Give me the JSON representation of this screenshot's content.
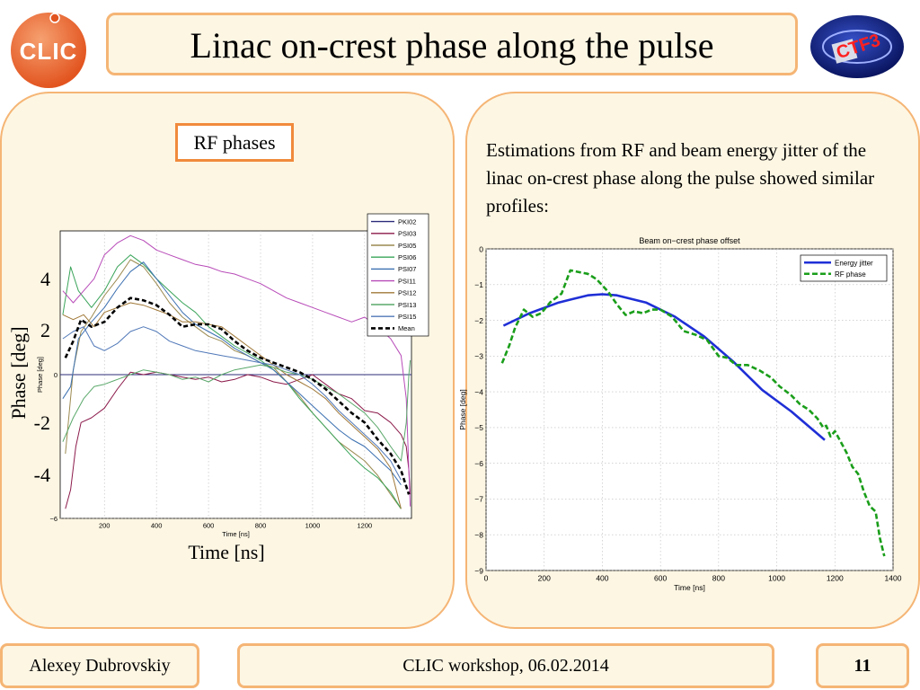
{
  "slide": {
    "title": "Linac on-crest phase along the pulse",
    "logo_left_text": "CLIC",
    "logo_right_text": "CTF3",
    "rf_box_label": "RF phases",
    "description": "Estimations from RF and beam energy jitter of the linac on-crest phase along the pulse showed similar profiles:",
    "left_big_labels": {
      "ylabel": "Phase [deg]",
      "xlabel": "Time [ns]",
      "yticks": [
        "4",
        "2",
        "-2",
        "-4"
      ]
    },
    "footer": {
      "author": "Alexey Dubrovskiy",
      "event": "CLIC workshop, 06.02.2014",
      "page": "11"
    }
  },
  "colors": {
    "accent_border": "#f5b575",
    "panel_bg": "#fdf6e3",
    "rf_box_border": "#f08a3c",
    "energy_jitter": "#1f2fd6",
    "rf_phase": "#1a9e1a"
  },
  "chart_data": [
    {
      "type": "line",
      "title": "",
      "xlabel": "Time [ns]",
      "ylabel": "Phase [deg]",
      "xlim": [
        30,
        1380
      ],
      "ylim": [
        -6,
        6
      ],
      "xticks": [
        "200",
        "400",
        "600",
        "800",
        "1000",
        "1200"
      ],
      "yticks": [
        "−6",
        "0"
      ],
      "grid": true,
      "legend_position": "top-right",
      "series": [
        {
          "name": "PKI02",
          "color": "#2b2b7a",
          "dash": false,
          "x": [
            30,
            1380
          ],
          "y": [
            0,
            0
          ]
        },
        {
          "name": "PSI03",
          "color": "#8b1a4a",
          "dash": false,
          "x": [
            50,
            70,
            90,
            110,
            150,
            200,
            250,
            300,
            350,
            400,
            450,
            500,
            550,
            600,
            650,
            700,
            750,
            800,
            850,
            900,
            950,
            1000,
            1050,
            1100,
            1150,
            1200,
            1250,
            1300,
            1340,
            1360,
            1370,
            1375
          ],
          "y": [
            -5.6,
            -4.8,
            -3.0,
            -2.0,
            -1.8,
            -1.4,
            -0.6,
            0.1,
            0.0,
            0.1,
            0.0,
            -0.1,
            -0.2,
            -0.1,
            -0.3,
            -0.2,
            0.0,
            -0.1,
            -0.3,
            -0.4,
            -0.2,
            0.0,
            -0.4,
            -0.8,
            -1.0,
            -1.5,
            -1.6,
            -2.0,
            -2.5,
            -3.0,
            -4.0,
            -5.0
          ]
        },
        {
          "name": "PSI05",
          "color": "#9c8a50",
          "dash": false,
          "x": [
            50,
            80,
            110,
            150,
            200,
            250,
            300,
            350,
            400,
            450,
            500,
            550,
            600,
            650,
            700,
            750,
            800,
            850,
            900,
            950,
            1000,
            1050,
            1100,
            1150,
            1200,
            1250,
            1300,
            1340
          ],
          "y": [
            -3.3,
            0.2,
            1.8,
            2.4,
            3.3,
            4.0,
            4.8,
            4.5,
            3.8,
            3.0,
            2.4,
            2.0,
            1.6,
            1.4,
            1.0,
            0.8,
            0.5,
            0.3,
            -0.3,
            -0.9,
            -1.6,
            -2.2,
            -2.8,
            -3.2,
            -3.6,
            -4.2,
            -5.0,
            -5.6
          ]
        },
        {
          "name": "PSI06",
          "color": "#3aa45a",
          "dash": false,
          "x": [
            40,
            70,
            100,
            150,
            200,
            250,
            300,
            350,
            400,
            450,
            500,
            550,
            600,
            650,
            700,
            750,
            800,
            850,
            900,
            950,
            1000,
            1050,
            1100,
            1150,
            1200,
            1250,
            1300,
            1340
          ],
          "y": [
            2.5,
            4.5,
            3.5,
            2.8,
            3.5,
            4.5,
            5.0,
            4.6,
            4.0,
            3.5,
            3.0,
            2.6,
            2.0,
            1.6,
            1.2,
            0.9,
            0.6,
            0.2,
            -0.3,
            -1.0,
            -1.6,
            -2.2,
            -2.8,
            -3.4,
            -3.9,
            -4.3,
            -4.9,
            -5.6
          ]
        },
        {
          "name": "PSI07",
          "color": "#3a6fb0",
          "dash": false,
          "x": [
            40,
            70,
            100,
            150,
            200,
            250,
            300,
            350,
            400,
            450,
            500,
            550,
            600,
            650,
            700,
            750,
            800,
            850,
            900,
            950,
            1000,
            1050,
            1100,
            1150,
            1200,
            1250,
            1300,
            1340
          ],
          "y": [
            -1.0,
            -0.5,
            1.5,
            2.2,
            2.8,
            3.6,
            4.3,
            4.7,
            4.0,
            3.3,
            2.6,
            2.1,
            1.8,
            1.5,
            1.1,
            0.8,
            0.5,
            0.2,
            -0.3,
            -0.8,
            -1.3,
            -1.8,
            -2.3,
            -2.7,
            -3.0,
            -3.5,
            -4.0,
            -4.6
          ]
        },
        {
          "name": "PSI11",
          "color": "#b84bb8",
          "dash": false,
          "x": [
            40,
            80,
            120,
            160,
            200,
            250,
            300,
            350,
            400,
            450,
            500,
            550,
            600,
            650,
            700,
            750,
            800,
            850,
            900,
            950,
            1000,
            1050,
            1100,
            1150,
            1200,
            1250,
            1300,
            1340,
            1360,
            1370,
            1375
          ],
          "y": [
            3.5,
            3.0,
            3.5,
            4.0,
            5.0,
            5.5,
            5.8,
            5.6,
            5.2,
            5.0,
            4.8,
            4.6,
            4.5,
            4.3,
            4.2,
            4.0,
            3.8,
            3.5,
            3.2,
            3.0,
            2.8,
            2.6,
            2.4,
            2.2,
            2.4,
            2.0,
            1.5,
            0.8,
            -1.0,
            -4.0,
            -5.5
          ]
        },
        {
          "name": "PSI12",
          "color": "#a07838",
          "dash": false,
          "x": [
            40,
            80,
            120,
            160,
            200,
            250,
            300,
            350,
            400,
            450,
            500,
            550,
            600,
            650,
            700,
            750,
            800,
            850,
            900,
            950,
            1000,
            1050,
            1100,
            1150,
            1200,
            1250,
            1300,
            1340
          ],
          "y": [
            2.5,
            2.3,
            2.5,
            2.0,
            2.6,
            2.8,
            3.0,
            2.9,
            2.7,
            2.5,
            2.2,
            2.2,
            2.1,
            2.0,
            1.6,
            1.2,
            0.8,
            0.4,
            0.0,
            -0.3,
            -0.6,
            -1.0,
            -1.6,
            -2.1,
            -2.6,
            -3.1,
            -3.9,
            -5.6
          ]
        },
        {
          "name": "PSI13",
          "color": "#5aa86a",
          "dash": false,
          "x": [
            40,
            80,
            120,
            160,
            200,
            250,
            300,
            350,
            400,
            450,
            500,
            550,
            600,
            650,
            700,
            750,
            800,
            850,
            900,
            950,
            1000,
            1050,
            1100,
            1150,
            1200,
            1250,
            1300,
            1340,
            1360,
            1370,
            1375
          ],
          "y": [
            -2.8,
            -1.8,
            -1.0,
            -0.5,
            -0.4,
            -0.2,
            0.0,
            0.2,
            0.1,
            0.0,
            -0.2,
            -0.1,
            -0.3,
            0.0,
            0.2,
            0.3,
            0.4,
            0.3,
            0.1,
            0.0,
            -0.2,
            -0.5,
            -0.8,
            -1.2,
            -1.6,
            -2.2,
            -3.0,
            -3.6,
            -2.0,
            0.0,
            0.6
          ]
        },
        {
          "name": "PSI15",
          "color": "#5078b8",
          "dash": false,
          "x": [
            40,
            80,
            120,
            160,
            200,
            250,
            300,
            350,
            400,
            450,
            500,
            550,
            600,
            650,
            700,
            750,
            800,
            850,
            900,
            950,
            1000,
            1050,
            1100,
            1150,
            1200,
            1250,
            1300,
            1340
          ],
          "y": [
            1.5,
            1.8,
            2.0,
            1.2,
            1.0,
            1.3,
            1.8,
            2.0,
            1.8,
            1.4,
            1.2,
            1.0,
            0.9,
            0.8,
            0.7,
            0.6,
            0.5,
            0.4,
            0.2,
            0.0,
            -0.4,
            -0.9,
            -1.5,
            -2.0,
            -2.5,
            -3.0,
            -3.6,
            -4.4
          ]
        },
        {
          "name": "Mean",
          "color": "#000000",
          "dash": true,
          "x": [
            50,
            80,
            110,
            150,
            200,
            250,
            300,
            350,
            400,
            450,
            500,
            550,
            600,
            650,
            700,
            750,
            800,
            850,
            900,
            950,
            1000,
            1050,
            1100,
            1150,
            1200,
            1250,
            1300,
            1340,
            1370
          ],
          "y": [
            0.7,
            1.4,
            2.3,
            2.0,
            2.2,
            2.8,
            3.2,
            3.1,
            2.9,
            2.5,
            2.0,
            2.1,
            2.1,
            1.9,
            1.4,
            1.0,
            0.7,
            0.5,
            0.3,
            0.1,
            -0.2,
            -0.6,
            -1.1,
            -1.6,
            -2.0,
            -2.7,
            -3.3,
            -4.0,
            -5.0
          ]
        }
      ]
    },
    {
      "type": "line",
      "title": "Beam on−crest phase offset",
      "xlabel": "Time [ns]",
      "ylabel": "Phase [deg]",
      "xlim": [
        0,
        1400
      ],
      "ylim": [
        -9,
        0
      ],
      "xticks": [
        "0",
        "200",
        "400",
        "600",
        "800",
        "1000",
        "1200",
        "1400"
      ],
      "yticks": [
        "0",
        "−1",
        "−2",
        "−3",
        "−4",
        "−5",
        "−6",
        "−7",
        "−8",
        "−9"
      ],
      "grid": true,
      "legend_position": "top-right",
      "series": [
        {
          "name": "Energy jitter",
          "color": "#1f2fd6",
          "dash": false,
          "x": [
            60,
            150,
            250,
            350,
            400,
            450,
            550,
            650,
            750,
            850,
            950,
            1050,
            1165
          ],
          "y": [
            -2.15,
            -1.8,
            -1.5,
            -1.3,
            -1.27,
            -1.3,
            -1.5,
            -1.9,
            -2.45,
            -3.15,
            -3.95,
            -4.55,
            -5.35
          ]
        },
        {
          "name": "RF phase",
          "color": "#1a9e1a",
          "dash": true,
          "x": [
            55,
            80,
            100,
            130,
            160,
            190,
            220,
            260,
            290,
            320,
            350,
            380,
            420,
            450,
            480,
            510,
            540,
            570,
            600,
            640,
            680,
            720,
            760,
            800,
            830,
            860,
            900,
            940,
            980,
            1010,
            1050,
            1080,
            1110,
            1140,
            1160,
            1170,
            1185,
            1200,
            1220,
            1240,
            1260,
            1280,
            1300,
            1320,
            1340,
            1355,
            1370
          ],
          "y": [
            -3.2,
            -2.7,
            -2.2,
            -1.7,
            -1.9,
            -1.8,
            -1.5,
            -1.25,
            -0.6,
            -0.65,
            -0.7,
            -0.85,
            -1.2,
            -1.55,
            -1.85,
            -1.75,
            -1.8,
            -1.7,
            -1.7,
            -1.9,
            -2.3,
            -2.4,
            -2.55,
            -3.0,
            -3.05,
            -3.25,
            -3.25,
            -3.4,
            -3.6,
            -3.85,
            -4.1,
            -4.35,
            -4.5,
            -4.75,
            -5.0,
            -4.95,
            -5.25,
            -5.1,
            -5.4,
            -5.7,
            -6.1,
            -6.3,
            -6.8,
            -7.2,
            -7.35,
            -8.1,
            -8.6
          ]
        }
      ]
    }
  ]
}
